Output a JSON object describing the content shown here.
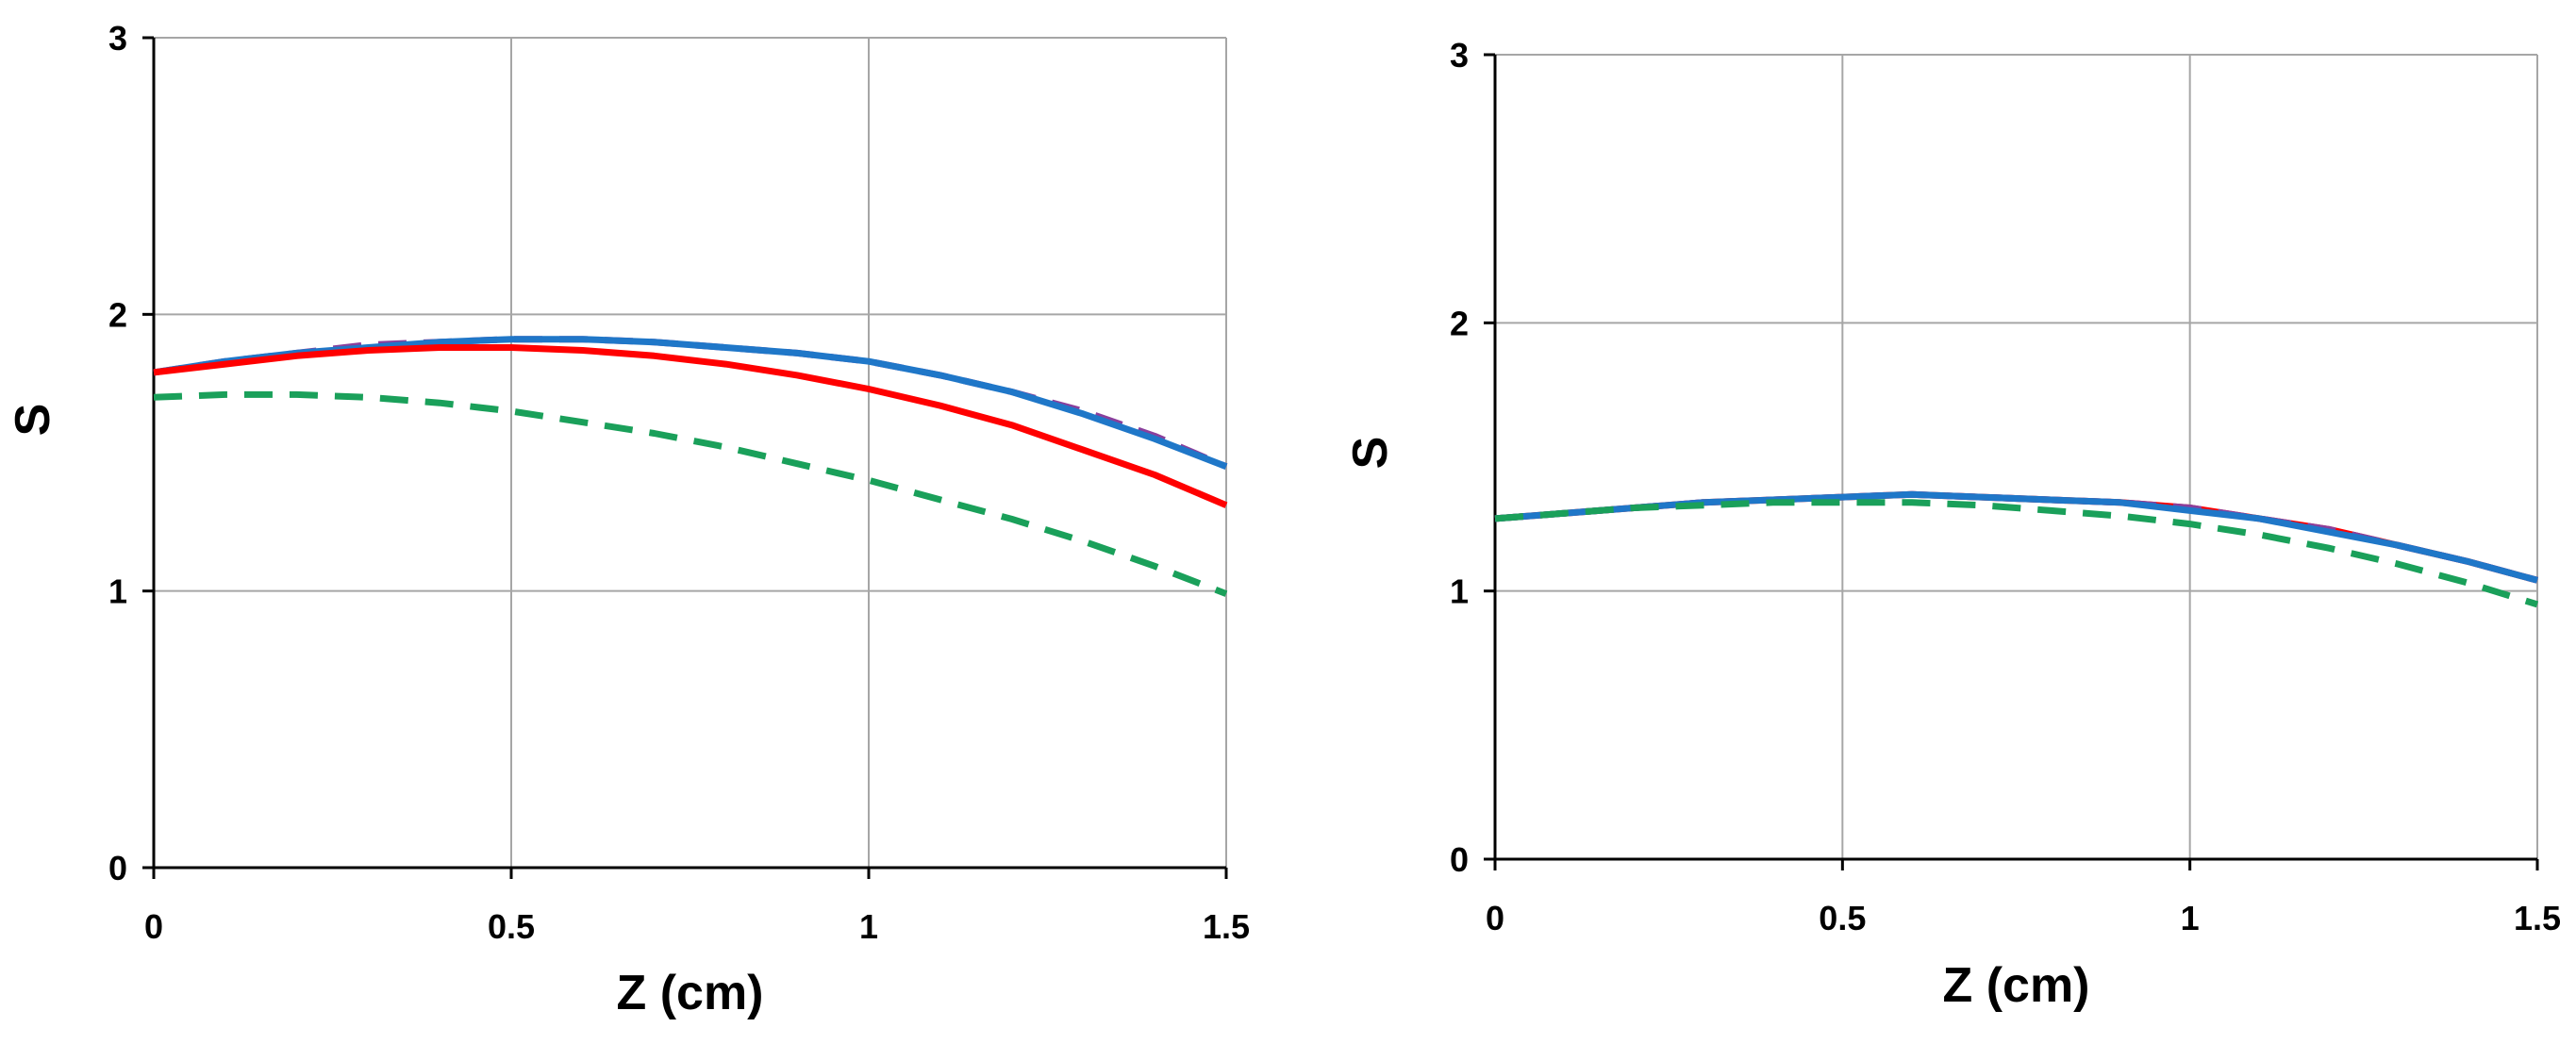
{
  "chart_data": [
    {
      "type": "line",
      "title": "",
      "xlabel": "Z (cm)",
      "ylabel": "S",
      "xlim": [
        0,
        1.5
      ],
      "ylim": [
        0,
        3
      ],
      "x_ticks": [
        "0",
        "0.5",
        "1",
        "1.5"
      ],
      "y_ticks": [
        "0",
        "1",
        "2",
        "3"
      ],
      "grid": true,
      "legend": "none",
      "series": [
        {
          "color": "#8a3f9c",
          "style": "dashed",
          "x": [
            0,
            0.1,
            0.2,
            0.3,
            0.4,
            0.5,
            0.6,
            0.7,
            0.8,
            0.9,
            1.0,
            1.1,
            1.2,
            1.3,
            1.4,
            1.5
          ],
          "y": [
            1.79,
            1.83,
            1.86,
            1.89,
            1.9,
            1.91,
            1.91,
            1.9,
            1.88,
            1.86,
            1.83,
            1.78,
            1.72,
            1.65,
            1.56,
            1.45
          ]
        },
        {
          "color": "#1f77c8",
          "style": "solid",
          "x": [
            0,
            0.1,
            0.2,
            0.3,
            0.4,
            0.5,
            0.6,
            0.7,
            0.8,
            0.9,
            1.0,
            1.1,
            1.2,
            1.3,
            1.4,
            1.5
          ],
          "y": [
            1.79,
            1.83,
            1.86,
            1.88,
            1.9,
            1.91,
            1.91,
            1.9,
            1.88,
            1.86,
            1.83,
            1.78,
            1.72,
            1.64,
            1.55,
            1.45
          ]
        },
        {
          "color": "#ff0000",
          "style": "solid",
          "x": [
            0,
            0.1,
            0.2,
            0.3,
            0.4,
            0.5,
            0.6,
            0.7,
            0.8,
            0.9,
            1.0,
            1.1,
            1.2,
            1.3,
            1.4,
            1.5
          ],
          "y": [
            1.79,
            1.82,
            1.85,
            1.87,
            1.88,
            1.88,
            1.87,
            1.85,
            1.82,
            1.78,
            1.73,
            1.67,
            1.6,
            1.51,
            1.42,
            1.31
          ]
        },
        {
          "color": "#1aa05a",
          "style": "dashed",
          "x": [
            0,
            0.1,
            0.2,
            0.3,
            0.4,
            0.5,
            0.6,
            0.7,
            0.8,
            0.9,
            1.0,
            1.1,
            1.2,
            1.3,
            1.4,
            1.5
          ],
          "y": [
            1.7,
            1.71,
            1.71,
            1.7,
            1.68,
            1.65,
            1.61,
            1.57,
            1.52,
            1.46,
            1.4,
            1.33,
            1.26,
            1.18,
            1.09,
            0.99
          ]
        }
      ]
    },
    {
      "type": "line",
      "title": "",
      "xlabel": "Z (cm)",
      "ylabel": "S",
      "xlim": [
        0,
        1.5
      ],
      "ylim": [
        0,
        3
      ],
      "x_ticks": [
        "0",
        "0.5",
        "1",
        "1.5"
      ],
      "y_ticks": [
        "0",
        "1",
        "2",
        "3"
      ],
      "grid": true,
      "legend": "none",
      "series": [
        {
          "color": "#ff0000",
          "style": "solid",
          "x": [
            0,
            0.1,
            0.2,
            0.3,
            0.4,
            0.5,
            0.6,
            0.7,
            0.8,
            0.9,
            1.0,
            1.1,
            1.2,
            1.3,
            1.4,
            1.5
          ],
          "y": [
            1.27,
            1.29,
            1.31,
            1.33,
            1.34,
            1.35,
            1.36,
            1.35,
            1.34,
            1.33,
            1.31,
            1.27,
            1.23,
            1.17,
            1.11,
            1.04
          ]
        },
        {
          "color": "#8a3f9c",
          "style": "dashed",
          "x": [
            0,
            0.1,
            0.2,
            0.3,
            0.4,
            0.5,
            0.6,
            0.7,
            0.8,
            0.9,
            1.0,
            1.1,
            1.2,
            1.3,
            1.4,
            1.5
          ],
          "y": [
            1.27,
            1.29,
            1.31,
            1.33,
            1.34,
            1.35,
            1.36,
            1.35,
            1.34,
            1.33,
            1.31,
            1.27,
            1.23,
            1.17,
            1.11,
            1.04
          ]
        },
        {
          "color": "#1f77c8",
          "style": "solid",
          "x": [
            0,
            0.1,
            0.2,
            0.3,
            0.4,
            0.5,
            0.6,
            0.7,
            0.8,
            0.9,
            1.0,
            1.1,
            1.2,
            1.3,
            1.4,
            1.5
          ],
          "y": [
            1.27,
            1.29,
            1.31,
            1.33,
            1.34,
            1.35,
            1.36,
            1.35,
            1.34,
            1.33,
            1.3,
            1.27,
            1.22,
            1.17,
            1.11,
            1.04
          ]
        },
        {
          "color": "#1aa05a",
          "style": "dashed",
          "x": [
            0,
            0.1,
            0.2,
            0.3,
            0.4,
            0.5,
            0.6,
            0.7,
            0.8,
            0.9,
            1.0,
            1.1,
            1.2,
            1.3,
            1.4,
            1.5
          ],
          "y": [
            1.27,
            1.29,
            1.31,
            1.32,
            1.33,
            1.33,
            1.33,
            1.32,
            1.3,
            1.28,
            1.25,
            1.21,
            1.16,
            1.1,
            1.03,
            0.95
          ]
        }
      ]
    }
  ]
}
